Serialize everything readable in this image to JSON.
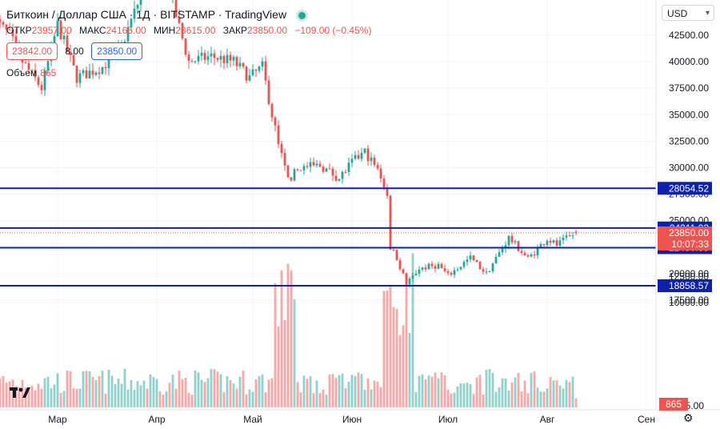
{
  "legend": {
    "symbol": "Биткоин / Доллар США",
    "interval": "1Д",
    "exchange": "BITSTAMP",
    "source": "TradingView"
  },
  "ohlc": {
    "open_label": "ОТКР",
    "open": "23957.00",
    "high_label": "МАКС",
    "high": "24165.00",
    "low_label": "МИН",
    "low": "23615.00",
    "close_label": "ЗАКР",
    "close": "23850.00",
    "change": "−109.00 (−0.45%)"
  },
  "bid": "23842.00",
  "spread": "8.00",
  "ask": "23850.00",
  "volume_label": "Объем",
  "volume_value": "865",
  "currency": "USD",
  "price_countdown": "10:07:33",
  "colors": {
    "up": "#26a69a",
    "down": "#ef5350",
    "line": "#0d22a8",
    "badge": "#0d22a8"
  },
  "chart_data": {
    "type": "candlestick",
    "ylim": [
      16500,
      44000
    ],
    "y_ticks": [
      17500,
      20000,
      22500,
      25000,
      27500,
      30000,
      32500,
      35000,
      37500,
      40000,
      42500
    ],
    "y_tick_labels": [
      "17500.00",
      "20000.00",
      "22500.00",
      "25000.00",
      "27500.00",
      "30000.00",
      "32500.00",
      "35000.00",
      "37500.00",
      "40000.00",
      "42500.00"
    ],
    "x_labels": [
      "Мар",
      "Апр",
      "Май",
      "Июн",
      "Июл",
      "Авг",
      "Сен"
    ],
    "x_label_dates": [
      "2022-03-01",
      "2022-04-01",
      "2022-05-01",
      "2022-06-01",
      "2022-07-01",
      "2022-08-01",
      "2022-09-01"
    ],
    "date_range": [
      "2022-02-09",
      "2022-08-10"
    ],
    "horizontal_lines": [
      {
        "value": 28054.52,
        "label": "28054.52"
      },
      {
        "value": 24311.03,
        "label": "24311.03"
      },
      {
        "value": 22450.39,
        "label": "22450.39"
      },
      {
        "value": 18858.57,
        "label": "18858.57"
      }
    ],
    "last_price": {
      "value": 23850.0,
      "label": "23850.00"
    },
    "volume_axis": {
      "ticks": [
        10000,
        12500,
        15000
      ],
      "labels": [
        "10000.00",
        "12500.00",
        "15000.00"
      ],
      "bottom_label": "865",
      "bottom_partial": "5.00"
    },
    "anchors": [
      [
        "2022-02-09",
        44000
      ],
      [
        "2022-02-14",
        42500
      ],
      [
        "2022-02-18",
        40000
      ],
      [
        "2022-02-24",
        37500
      ],
      [
        "2022-03-01",
        43500
      ],
      [
        "2022-03-07",
        38500
      ],
      [
        "2022-03-15",
        39500
      ],
      [
        "2022-03-21",
        41500
      ],
      [
        "2022-03-28",
        47000
      ],
      [
        "2022-04-05",
        46500
      ],
      [
        "2022-04-11",
        40000
      ],
      [
        "2022-04-18",
        40500
      ],
      [
        "2022-04-25",
        40000
      ],
      [
        "2022-04-30",
        38500
      ],
      [
        "2022-05-04",
        39500
      ],
      [
        "2022-05-07",
        35000
      ],
      [
        "2022-05-10",
        31000
      ],
      [
        "2022-05-12",
        28900
      ],
      [
        "2022-05-16",
        30000
      ],
      [
        "2022-05-22",
        30200
      ],
      [
        "2022-05-28",
        29000
      ],
      [
        "2022-06-01",
        30500
      ],
      [
        "2022-06-05",
        31500
      ],
      [
        "2022-06-08",
        30200
      ],
      [
        "2022-06-10",
        29200
      ],
      [
        "2022-06-12",
        27500
      ],
      [
        "2022-06-13",
        22500
      ],
      [
        "2022-06-15",
        21500
      ],
      [
        "2022-06-18",
        19000
      ],
      [
        "2022-06-22",
        20500
      ],
      [
        "2022-06-28",
        20800
      ],
      [
        "2022-07-01",
        19800
      ],
      [
        "2022-07-08",
        21500
      ],
      [
        "2022-07-13",
        20000
      ],
      [
        "2022-07-20",
        23400
      ],
      [
        "2022-07-26",
        21400
      ],
      [
        "2022-08-01",
        23300
      ],
      [
        "2022-08-04",
        22700
      ],
      [
        "2022-08-10",
        23850
      ]
    ]
  }
}
